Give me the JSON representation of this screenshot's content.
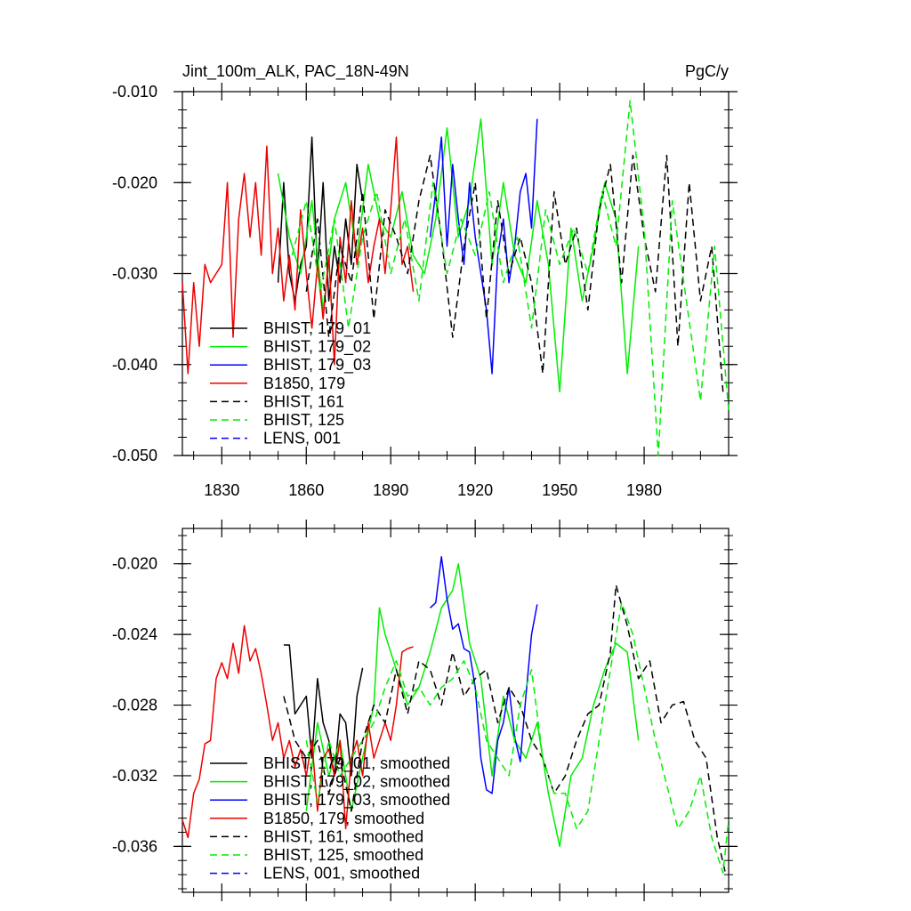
{
  "chart_data": [
    {
      "type": "line",
      "title": "Jint_100m_ALK, PAC_18N-49N",
      "units": "PgC/y",
      "xlim": [
        1816,
        2010
      ],
      "ylim": [
        -0.05,
        -0.01
      ],
      "xticks": [
        1830,
        1860,
        1890,
        1920,
        1950,
        1980
      ],
      "xtick_labels": [
        "1830",
        "1860",
        "1890",
        "1920",
        "1950",
        "1980"
      ],
      "yticks": [
        -0.05,
        -0.04,
        -0.03,
        -0.02,
        -0.01
      ],
      "ytick_labels": [
        "-0.050",
        "-0.040",
        "-0.030",
        "-0.020",
        "-0.010"
      ],
      "legend_position": "bottom-left",
      "series": [
        {
          "name": "BHIST, 179_01",
          "color": "#000000",
          "dash": "solid",
          "x": [
            1850,
            1852,
            1854,
            1856,
            1858,
            1860,
            1862,
            1864,
            1866,
            1868,
            1870,
            1872,
            1874,
            1876,
            1878,
            1880
          ],
          "y": [
            -0.031,
            -0.02,
            -0.03,
            -0.033,
            -0.029,
            -0.027,
            -0.015,
            -0.03,
            -0.02,
            -0.033,
            -0.027,
            -0.031,
            -0.024,
            -0.029,
            -0.018,
            -0.022
          ]
        },
        {
          "name": "BHIST, 179_02",
          "color": "#00ee00",
          "dash": "solid",
          "x": [
            1850,
            1854,
            1858,
            1862,
            1866,
            1870,
            1874,
            1878,
            1882,
            1886,
            1890,
            1894,
            1898,
            1902,
            1906,
            1910,
            1914,
            1918,
            1922,
            1926,
            1930,
            1934,
            1938,
            1942,
            1946,
            1950,
            1954,
            1958,
            1962,
            1966,
            1970,
            1974,
            1978
          ],
          "y": [
            -0.019,
            -0.026,
            -0.03,
            -0.022,
            -0.034,
            -0.024,
            -0.02,
            -0.028,
            -0.018,
            -0.024,
            -0.026,
            -0.021,
            -0.028,
            -0.03,
            -0.024,
            -0.014,
            -0.026,
            -0.022,
            -0.013,
            -0.029,
            -0.02,
            -0.028,
            -0.031,
            -0.022,
            -0.029,
            -0.043,
            -0.025,
            -0.033,
            -0.027,
            -0.02,
            -0.024,
            -0.041,
            -0.027
          ]
        },
        {
          "name": "BHIST, 179_03",
          "color": "#0000ff",
          "dash": "solid",
          "x": [
            1904,
            1906,
            1908,
            1910,
            1912,
            1914,
            1916,
            1918,
            1920,
            1922,
            1924,
            1926,
            1928,
            1930,
            1932,
            1934,
            1936,
            1938,
            1940,
            1942
          ],
          "y": [
            -0.026,
            -0.021,
            -0.015,
            -0.027,
            -0.018,
            -0.024,
            -0.029,
            -0.02,
            -0.026,
            -0.03,
            -0.034,
            -0.041,
            -0.028,
            -0.024,
            -0.031,
            -0.027,
            -0.021,
            -0.019,
            -0.025,
            -0.013
          ]
        },
        {
          "name": "B1850, 179",
          "color": "#ee0000",
          "dash": "solid",
          "x": [
            1816,
            1818,
            1820,
            1822,
            1824,
            1826,
            1828,
            1830,
            1832,
            1834,
            1836,
            1838,
            1840,
            1842,
            1844,
            1846,
            1848,
            1850,
            1852,
            1854,
            1856,
            1858,
            1860,
            1862,
            1864,
            1866,
            1868,
            1870,
            1872,
            1874,
            1876,
            1878,
            1880,
            1882,
            1884,
            1886,
            1888,
            1890,
            1892,
            1894,
            1896,
            1898
          ],
          "y": [
            -0.031,
            -0.041,
            -0.031,
            -0.038,
            -0.029,
            -0.031,
            -0.03,
            -0.029,
            -0.02,
            -0.037,
            -0.024,
            -0.019,
            -0.026,
            -0.02,
            -0.028,
            -0.016,
            -0.03,
            -0.025,
            -0.033,
            -0.028,
            -0.034,
            -0.023,
            -0.03,
            -0.036,
            -0.029,
            -0.035,
            -0.028,
            -0.04,
            -0.026,
            -0.031,
            -0.022,
            -0.029,
            -0.025,
            -0.031,
            -0.027,
            -0.024,
            -0.03,
            -0.023,
            -0.015,
            -0.029,
            -0.027,
            -0.032
          ]
        },
        {
          "name": "BHIST, 161",
          "color": "#000000",
          "dash": "dashed",
          "x": [
            1860,
            1864,
            1868,
            1872,
            1876,
            1880,
            1884,
            1888,
            1892,
            1896,
            1900,
            1904,
            1908,
            1912,
            1916,
            1920,
            1924,
            1928,
            1932,
            1936,
            1940,
            1944,
            1948,
            1952,
            1956,
            1960,
            1964,
            1968,
            1972,
            1976,
            1980,
            1984,
            1988,
            1992,
            1996,
            2000,
            2004,
            2008
          ],
          "y": [
            -0.032,
            -0.024,
            -0.037,
            -0.027,
            -0.031,
            -0.021,
            -0.035,
            -0.023,
            -0.026,
            -0.03,
            -0.022,
            -0.017,
            -0.026,
            -0.037,
            -0.027,
            -0.02,
            -0.035,
            -0.022,
            -0.03,
            -0.026,
            -0.031,
            -0.041,
            -0.021,
            -0.029,
            -0.025,
            -0.034,
            -0.023,
            -0.018,
            -0.031,
            -0.017,
            -0.026,
            -0.032,
            -0.017,
            -0.038,
            -0.02,
            -0.033,
            -0.027,
            -0.043
          ]
        },
        {
          "name": "BHIST, 125",
          "color": "#00ee00",
          "dash": "dashed",
          "x": [
            1855,
            1860,
            1865,
            1870,
            1875,
            1880,
            1885,
            1890,
            1895,
            1900,
            1905,
            1910,
            1915,
            1920,
            1925,
            1930,
            1935,
            1940,
            1945,
            1950,
            1955,
            1960,
            1965,
            1970,
            1975,
            1980,
            1985,
            1990,
            1995,
            2000,
            2005,
            2010
          ],
          "y": [
            -0.028,
            -0.022,
            -0.032,
            -0.024,
            -0.036,
            -0.026,
            -0.021,
            -0.03,
            -0.024,
            -0.033,
            -0.02,
            -0.03,
            -0.024,
            -0.028,
            -0.021,
            -0.031,
            -0.026,
            -0.036,
            -0.023,
            -0.029,
            -0.025,
            -0.03,
            -0.021,
            -0.027,
            -0.011,
            -0.025,
            -0.05,
            -0.022,
            -0.033,
            -0.044,
            -0.027,
            -0.045
          ]
        },
        {
          "name": "LENS, 001",
          "color": "#0000ff",
          "dash": "dashed",
          "x": [],
          "y": []
        }
      ]
    },
    {
      "type": "line",
      "title": "",
      "xlim": [
        1816,
        2010
      ],
      "ylim": [
        -0.0386,
        -0.018
      ],
      "yticks": [
        -0.036,
        -0.032,
        -0.028,
        -0.024,
        -0.02
      ],
      "ytick_labels": [
        "-0.036",
        "-0.032",
        "-0.028",
        "-0.024",
        "-0.020"
      ],
      "xticks": [
        1830,
        1860,
        1890,
        1920,
        1950,
        1980
      ],
      "legend_position": "bottom-left",
      "series": [
        {
          "name": "BHIST, 179_01, smoothed",
          "color": "#000000",
          "dash": "solid",
          "x": [
            1852,
            1854,
            1856,
            1858,
            1860,
            1862,
            1864,
            1866,
            1868,
            1870,
            1872,
            1874,
            1876,
            1878,
            1880
          ],
          "y": [
            -0.0246,
            -0.0246,
            -0.0285,
            -0.028,
            -0.0275,
            -0.031,
            -0.0265,
            -0.029,
            -0.03,
            -0.032,
            -0.0285,
            -0.029,
            -0.032,
            -0.0275,
            -0.0259
          ]
        },
        {
          "name": "BHIST, 179_02, smoothed",
          "color": "#00ee00",
          "dash": "solid",
          "x": [
            1860,
            1864,
            1868,
            1872,
            1876,
            1880,
            1884,
            1886,
            1888,
            1892,
            1896,
            1900,
            1904,
            1908,
            1912,
            1914,
            1918,
            1922,
            1926,
            1930,
            1934,
            1938,
            1942,
            1946,
            1950,
            1954,
            1958,
            1962,
            1966,
            1970,
            1974,
            1978
          ],
          "y": [
            -0.034,
            -0.029,
            -0.032,
            -0.03,
            -0.034,
            -0.031,
            -0.028,
            -0.0225,
            -0.024,
            -0.026,
            -0.028,
            -0.027,
            -0.025,
            -0.0225,
            -0.0215,
            -0.02,
            -0.0245,
            -0.0265,
            -0.032,
            -0.0275,
            -0.03,
            -0.031,
            -0.029,
            -0.033,
            -0.036,
            -0.032,
            -0.031,
            -0.028,
            -0.026,
            -0.0245,
            -0.025,
            -0.03
          ]
        },
        {
          "name": "BHIST, 179_03, smoothed",
          "color": "#0000ff",
          "dash": "solid",
          "x": [
            1904,
            1906,
            1908,
            1910,
            1912,
            1914,
            1916,
            1918,
            1920,
            1922,
            1924,
            1926,
            1928,
            1930,
            1932,
            1934,
            1936,
            1938,
            1940,
            1942
          ],
          "y": [
            -0.0225,
            -0.0222,
            -0.0196,
            -0.022,
            -0.0237,
            -0.0234,
            -0.0248,
            -0.025,
            -0.027,
            -0.031,
            -0.0328,
            -0.033,
            -0.03,
            -0.029,
            -0.027,
            -0.0298,
            -0.0312,
            -0.0275,
            -0.024,
            -0.0223
          ]
        },
        {
          "name": "B1850, 179, smoothed",
          "color": "#ee0000",
          "dash": "solid",
          "x": [
            1816,
            1818,
            1820,
            1822,
            1824,
            1826,
            1828,
            1830,
            1832,
            1834,
            1836,
            1838,
            1840,
            1842,
            1844,
            1846,
            1848,
            1850,
            1852,
            1854,
            1856,
            1858,
            1860,
            1862,
            1864,
            1866,
            1868,
            1870,
            1872,
            1874,
            1876,
            1878,
            1880,
            1882,
            1884,
            1886,
            1888,
            1890,
            1892,
            1894,
            1896,
            1898
          ],
          "y": [
            -0.0345,
            -0.0355,
            -0.033,
            -0.0322,
            -0.0302,
            -0.03,
            -0.0265,
            -0.0256,
            -0.0265,
            -0.0245,
            -0.0262,
            -0.0235,
            -0.0255,
            -0.0248,
            -0.0262,
            -0.028,
            -0.03,
            -0.029,
            -0.031,
            -0.03,
            -0.0315,
            -0.0305,
            -0.032,
            -0.03,
            -0.034,
            -0.031,
            -0.0305,
            -0.032,
            -0.03,
            -0.035,
            -0.031,
            -0.03,
            -0.032,
            -0.029,
            -0.031,
            -0.03,
            -0.029,
            -0.03,
            -0.028,
            -0.025,
            -0.0248,
            -0.0247
          ]
        },
        {
          "name": "BHIST, 161, smoothed",
          "color": "#000000",
          "dash": "dashed",
          "x": [
            1852,
            1856,
            1860,
            1864,
            1868,
            1872,
            1876,
            1880,
            1884,
            1888,
            1892,
            1896,
            1900,
            1904,
            1908,
            1912,
            1916,
            1920,
            1924,
            1928,
            1932,
            1936,
            1940,
            1944,
            1948,
            1952,
            1956,
            1960,
            1964,
            1968,
            1970,
            1974,
            1978,
            1982,
            1986,
            1990,
            1994,
            1998,
            2002,
            2006,
            2009
          ],
          "y": [
            -0.0275,
            -0.03,
            -0.031,
            -0.03,
            -0.033,
            -0.031,
            -0.034,
            -0.03,
            -0.028,
            -0.029,
            -0.026,
            -0.0285,
            -0.0255,
            -0.026,
            -0.028,
            -0.025,
            -0.0275,
            -0.0265,
            -0.026,
            -0.029,
            -0.027,
            -0.028,
            -0.03,
            -0.031,
            -0.033,
            -0.032,
            -0.03,
            -0.0285,
            -0.028,
            -0.025,
            -0.0212,
            -0.0235,
            -0.0265,
            -0.0255,
            -0.029,
            -0.028,
            -0.0278,
            -0.03,
            -0.031,
            -0.0355,
            -0.0376
          ]
        },
        {
          "name": "BHIST, 125, smoothed",
          "color": "#00ee00",
          "dash": "dashed",
          "x": [
            1860,
            1864,
            1868,
            1872,
            1876,
            1880,
            1884,
            1888,
            1892,
            1896,
            1900,
            1904,
            1908,
            1912,
            1916,
            1920,
            1924,
            1928,
            1932,
            1936,
            1940,
            1944,
            1948,
            1952,
            1956,
            1960,
            1964,
            1968,
            1972,
            1976,
            1980,
            1984,
            1988,
            1992,
            1996,
            2000,
            2004,
            2008,
            2010
          ],
          "y": [
            -0.03,
            -0.0335,
            -0.03,
            -0.032,
            -0.031,
            -0.03,
            -0.029,
            -0.027,
            -0.0255,
            -0.0275,
            -0.027,
            -0.028,
            -0.027,
            -0.0265,
            -0.0255,
            -0.027,
            -0.03,
            -0.031,
            -0.032,
            -0.028,
            -0.026,
            -0.031,
            -0.033,
            -0.033,
            -0.035,
            -0.034,
            -0.03,
            -0.026,
            -0.0222,
            -0.024,
            -0.027,
            -0.03,
            -0.0325,
            -0.035,
            -0.034,
            -0.032,
            -0.0355,
            -0.0375,
            -0.0345
          ]
        },
        {
          "name": "LENS, 001, smoothed",
          "color": "#0000ff",
          "dash": "dashed",
          "x": [],
          "y": []
        }
      ]
    }
  ]
}
